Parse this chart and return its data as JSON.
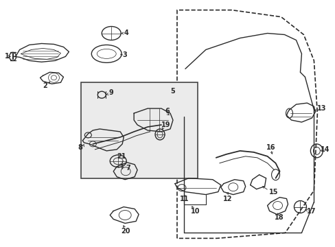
{
  "bg_color": "#ffffff",
  "fig_width": 4.89,
  "fig_height": 3.6,
  "dpi": 100,
  "lc": "#2a2a2a",
  "box_fill": "#ebebeb",
  "box_edge": "#444444",
  "font_size": 7.0,
  "font_size_small": 6.5
}
